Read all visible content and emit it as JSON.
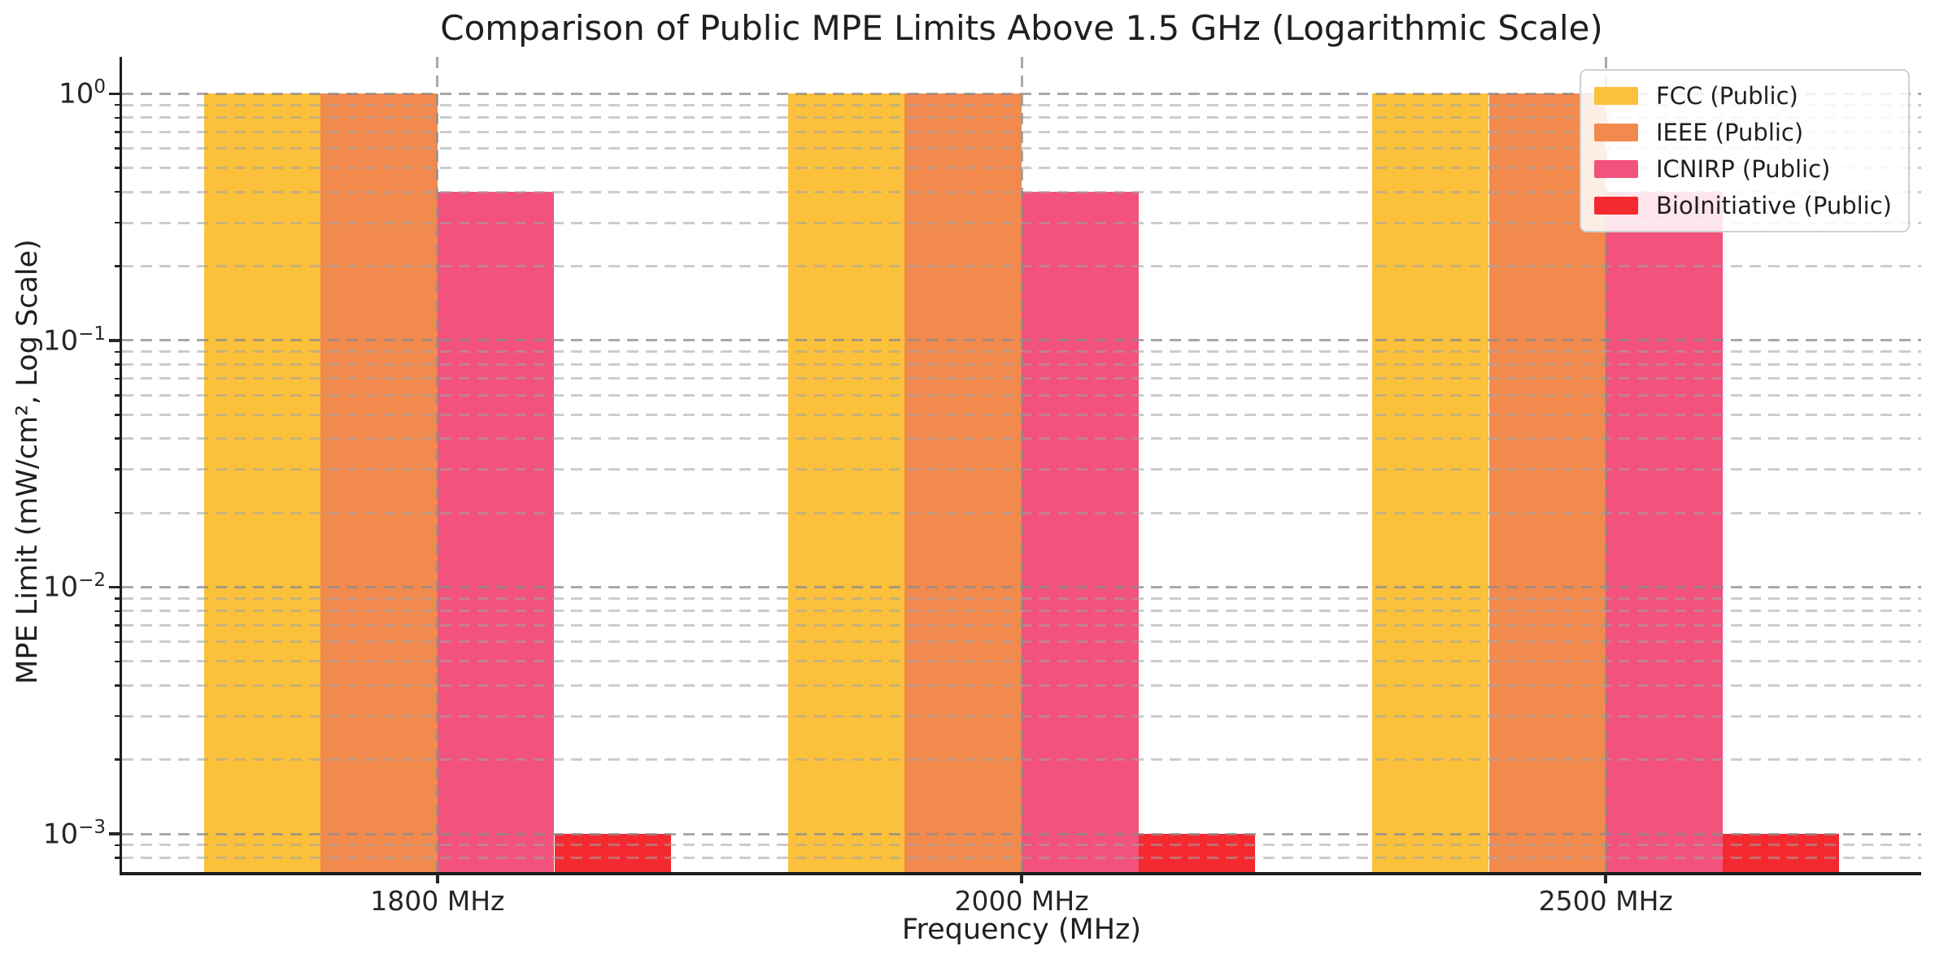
{
  "chart_data": {
    "type": "bar",
    "title": "Comparison of Public MPE Limits Above 1.5 GHz (Logarithmic Scale)",
    "xlabel": "Frequency (MHz)",
    "ylabel": "MPE Limit (mW/cm², Log Scale)",
    "categories": [
      "1800 MHz",
      "2000 MHz",
      "2500 MHz"
    ],
    "series": [
      {
        "name": "FCC (Public)",
        "color": "#FCC13B",
        "values": [
          1.0,
          1.0,
          1.0
        ]
      },
      {
        "name": "IEEE (Public)",
        "color": "#F28A4E",
        "values": [
          1.0,
          1.0,
          1.0
        ]
      },
      {
        "name": "ICNIRP (Public)",
        "color": "#F2527B",
        "values": [
          0.4,
          0.4,
          0.4
        ]
      },
      {
        "name": "BioInitiative (Public)",
        "color": "#F42A30",
        "values": [
          0.001,
          0.001,
          0.001
        ]
      }
    ],
    "yscale": "log",
    "ylim": [
      0.0007,
      1.41
    ],
    "yticks": [
      {
        "value": 1,
        "base": "10",
        "exp": "0"
      },
      {
        "value": 0.1,
        "base": "10",
        "exp": "−1"
      },
      {
        "value": 0.01,
        "base": "10",
        "exp": "−2"
      },
      {
        "value": 0.001,
        "base": "10",
        "exp": "−3"
      }
    ],
    "grid": {
      "which": "both",
      "axis": "both",
      "style": "dashed",
      "over_bars": true
    },
    "legend": {
      "position": "upper right"
    }
  }
}
